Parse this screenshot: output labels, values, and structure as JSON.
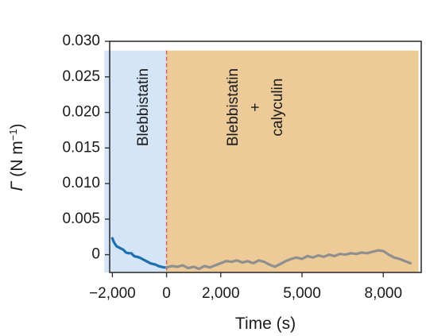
{
  "chart_data": {
    "type": "line",
    "xlabel": "Time (s)",
    "ylabel": {
      "symbol": "Γ",
      "unit_open": " (N m",
      "unit_exp": "−1",
      "unit_close": ")"
    },
    "xlim": [
      -2100,
      9400
    ],
    "ylim": [
      -0.0025,
      0.03
    ],
    "xticks": [
      {
        "value": -2000,
        "label": "−2,000"
      },
      {
        "value": 0,
        "label": "0"
      },
      {
        "value": 2000,
        "label": "2,000"
      },
      {
        "value": 5000,
        "label": "5,000"
      },
      {
        "value": 8000,
        "label": "8,000"
      }
    ],
    "yticks": [
      {
        "value": 0,
        "label": "0"
      },
      {
        "value": 0.005,
        "label": "0.005"
      },
      {
        "value": 0.01,
        "label": "0.010"
      },
      {
        "value": 0.015,
        "label": "0.015"
      },
      {
        "value": 0.02,
        "label": "0.020"
      },
      {
        "value": 0.025,
        "label": "0.025"
      },
      {
        "value": 0.03,
        "label": "0.030"
      }
    ],
    "regions": [
      {
        "x0": -2300,
        "x1": 0,
        "color": "#d4e5f7",
        "label_lines": [
          "Blebbistatin"
        ]
      },
      {
        "x0": 0,
        "x1": 9300,
        "color": "#edcb98",
        "label_lines": [
          "Blebbistatin",
          "+",
          "calyculin"
        ]
      }
    ],
    "region_top": 0.0287,
    "divider": {
      "x": 0,
      "color": "#e0564d"
    },
    "series": [
      {
        "color": "#1e6fae",
        "x": [
          -2000,
          -1950,
          -1900,
          -1850,
          -1800,
          -1700,
          -1600,
          -1500,
          -1400,
          -1300,
          -1200,
          -1100,
          -1000,
          -900,
          -800,
          -700,
          -600,
          -500,
          -400,
          -300,
          -200,
          -100,
          0
        ],
        "y": [
          0.0023,
          0.0018,
          0.0015,
          0.0012,
          0.0011,
          0.0009,
          0.0007,
          0.0003,
          0.0002,
          0.0002,
          -0.0002,
          -0.0003,
          -0.0004,
          -0.0006,
          -0.0008,
          -0.001,
          -0.0012,
          -0.0013,
          -0.0014,
          -0.0016,
          -0.0017,
          -0.0018,
          -0.0018
        ]
      },
      {
        "color": "#8f8f8f",
        "x": [
          0,
          200,
          400,
          600,
          800,
          1000,
          1200,
          1400,
          1600,
          1800,
          2000,
          2200,
          2400,
          2600,
          2800,
          3000,
          3200,
          3400,
          3600,
          3800,
          4000,
          4200,
          4400,
          4600,
          4800,
          5000,
          5200,
          5400,
          5600,
          5800,
          6000,
          6200,
          6400,
          6600,
          6800,
          7000,
          7200,
          7400,
          7600,
          7800,
          8000,
          8200,
          8400,
          8600,
          8800,
          9000
        ],
        "y": [
          -0.0018,
          -0.0016,
          -0.0017,
          -0.0015,
          -0.0019,
          -0.0017,
          -0.002,
          -0.0016,
          -0.0018,
          -0.0015,
          -0.0012,
          -0.0009,
          -0.001,
          -0.0008,
          -0.0011,
          -0.0009,
          -0.0012,
          -0.0008,
          -0.001,
          -0.0014,
          -0.0017,
          -0.0013,
          -0.0009,
          -0.0006,
          -0.0004,
          -0.0006,
          -0.0002,
          -0.0004,
          -0.0001,
          -0.0003,
          0.0,
          -0.0002,
          0.0001,
          0.0,
          0.0002,
          0.0001,
          0.0003,
          0.0002,
          0.0004,
          0.0006,
          0.0005,
          0.0,
          -0.0004,
          -0.0006,
          -0.0009,
          -0.0012
        ]
      }
    ]
  }
}
